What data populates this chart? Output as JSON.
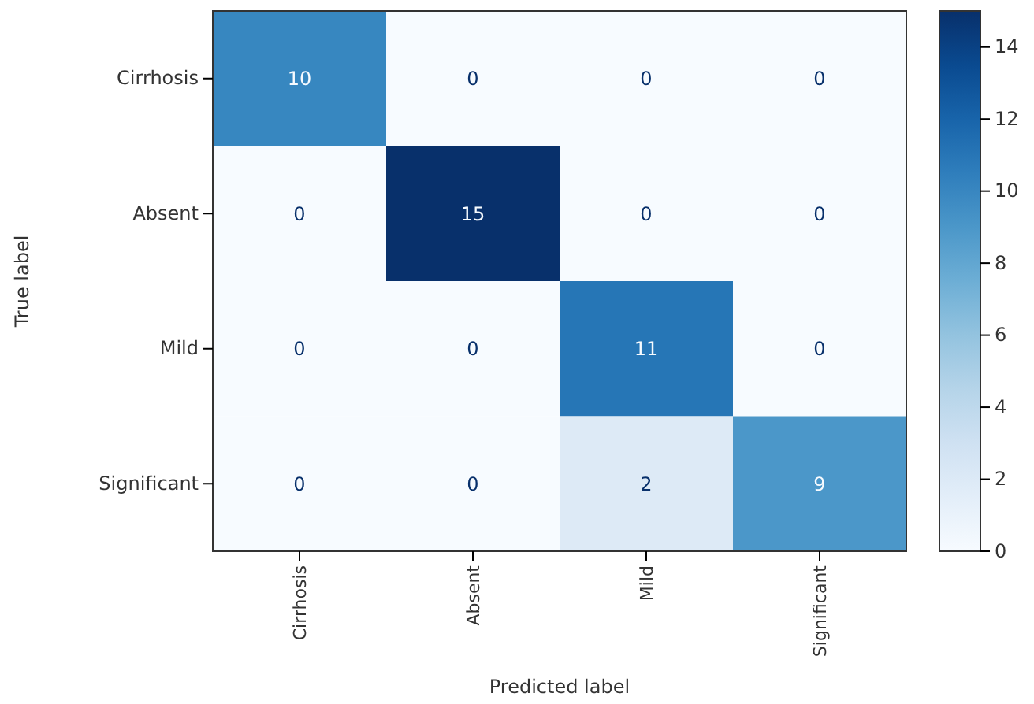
{
  "chart_data": {
    "type": "heatmap",
    "xlabel": "Predicted label",
    "ylabel": "True label",
    "categories": [
      "Cirrhosis",
      "Absent",
      "Mild",
      "Significant"
    ],
    "y_categories": [
      "Cirrhosis",
      "Absent",
      "Mild",
      "Significant"
    ],
    "cells": [
      [
        10,
        0,
        0,
        0
      ],
      [
        0,
        15,
        0,
        0
      ],
      [
        0,
        0,
        11,
        0
      ],
      [
        0,
        0,
        2,
        9
      ]
    ],
    "clim": [
      0,
      15
    ],
    "cticks": [
      0,
      2,
      4,
      6,
      8,
      10,
      12,
      14
    ],
    "data_labels": true
  }
}
